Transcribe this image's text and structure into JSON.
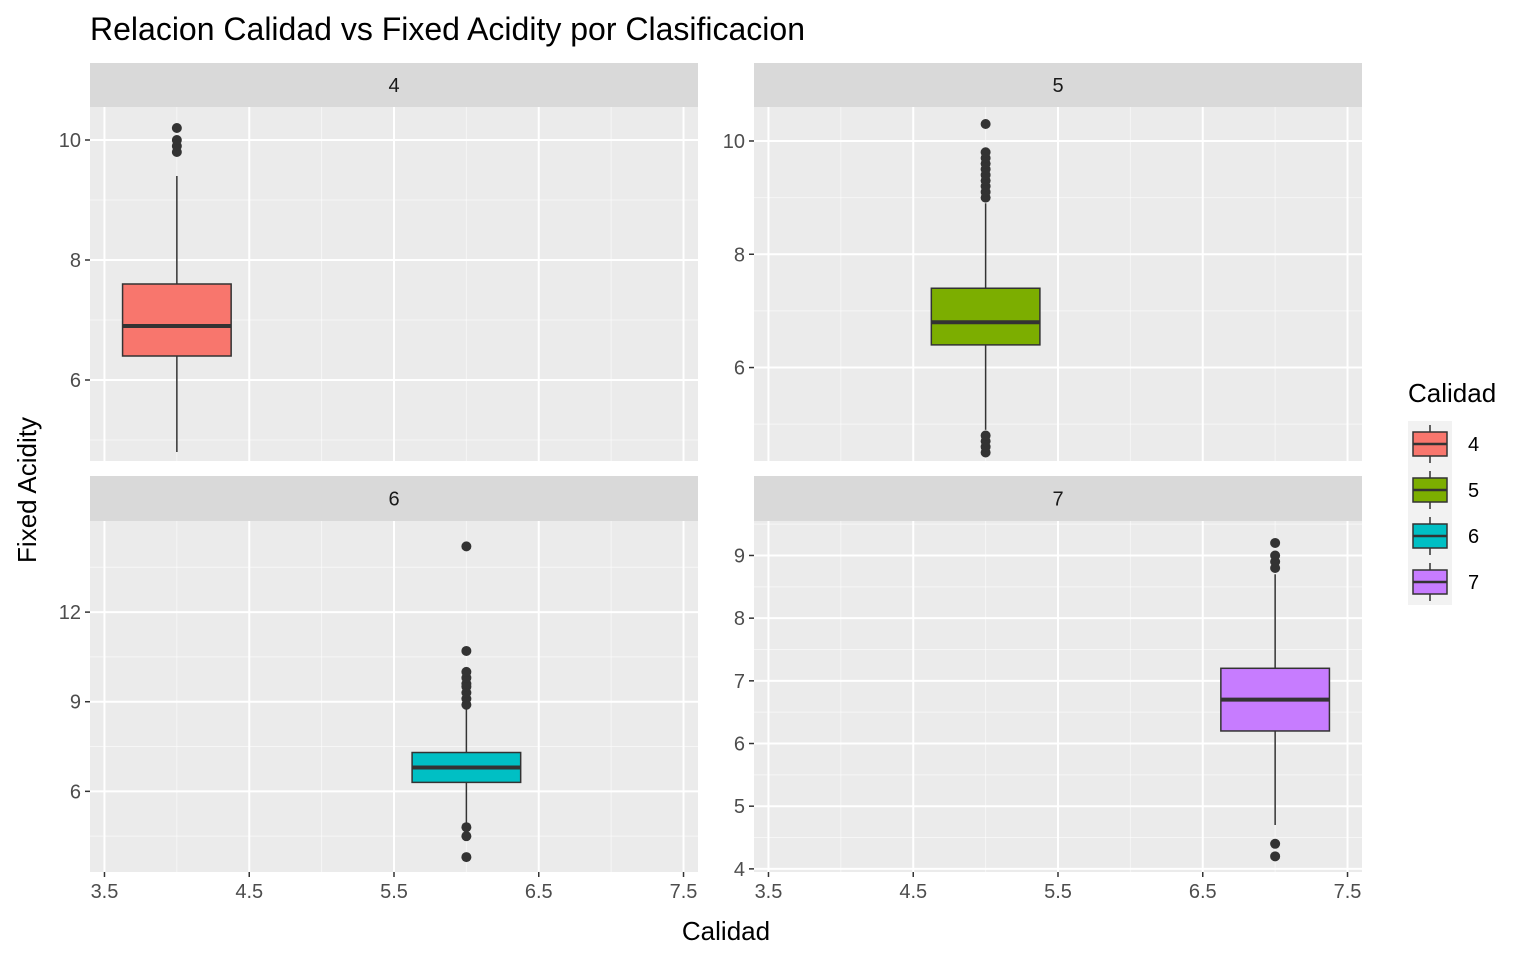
{
  "chart_data": {
    "type": "boxplot",
    "title": "Relacion Calidad vs Fixed Acidity por Clasificacion",
    "xlabel": "Calidad",
    "ylabel": "Fixed Acidity",
    "x_ticks": [
      "3.5",
      "4.5",
      "5.5",
      "6.5",
      "7.5"
    ],
    "facet_layout": "2x2",
    "legend": {
      "title": "Calidad",
      "position": "right",
      "entries": [
        {
          "label": "4",
          "color": "#F8766D"
        },
        {
          "label": "5",
          "color": "#7CAE00"
        },
        {
          "label": "6",
          "color": "#00BFC4"
        },
        {
          "label": "7",
          "color": "#C77CFF"
        }
      ]
    },
    "colors": {
      "panel_bg": "#EBEBEB",
      "strip_bg": "#D9D9D9",
      "grid_major": "#FFFFFF",
      "box_line": "#333333",
      "tick_text": "#4D4D4D"
    },
    "facets": [
      {
        "strip": "4",
        "x": 4,
        "color": "#F8766D",
        "ylim": [
          4.65,
          10.55
        ],
        "y_ticks": [
          6,
          8,
          10
        ],
        "q1": 6.4,
        "median": 6.9,
        "q3": 7.6,
        "whisker_low": 4.8,
        "whisker_high": 9.4,
        "outliers": [
          9.8,
          9.9,
          10.0,
          10.2
        ]
      },
      {
        "strip": "5",
        "x": 5,
        "color": "#7CAE00",
        "ylim": [
          4.35,
          10.6
        ],
        "y_ticks": [
          6,
          8,
          10
        ],
        "q1": 6.4,
        "median": 6.8,
        "q3": 7.4,
        "whisker_low": 4.9,
        "whisker_high": 8.9,
        "outliers": [
          4.5,
          4.6,
          4.7,
          4.8,
          9.0,
          9.1,
          9.2,
          9.3,
          9.4,
          9.5,
          9.6,
          9.7,
          9.8,
          10.3
        ]
      },
      {
        "strip": "6",
        "x": 6,
        "color": "#00BFC4",
        "ylim": [
          3.3,
          15.05
        ],
        "y_ticks": [
          6,
          9,
          12
        ],
        "q1": 6.3,
        "median": 6.8,
        "q3": 7.3,
        "whisker_low": 4.9,
        "whisker_high": 8.8,
        "outliers": [
          3.8,
          4.5,
          4.8,
          8.9,
          9.1,
          9.3,
          9.5,
          9.6,
          9.8,
          10.0,
          10.7,
          14.2
        ]
      },
      {
        "strip": "7",
        "x": 7,
        "color": "#C77CFF",
        "ylim": [
          3.95,
          9.55
        ],
        "y_ticks": [
          4,
          5,
          6,
          7,
          8,
          9
        ],
        "q1": 6.2,
        "median": 6.7,
        "q3": 7.2,
        "whisker_low": 4.7,
        "whisker_high": 8.7,
        "outliers": [
          4.2,
          4.4,
          8.8,
          8.9,
          9.0,
          9.2
        ]
      }
    ]
  }
}
